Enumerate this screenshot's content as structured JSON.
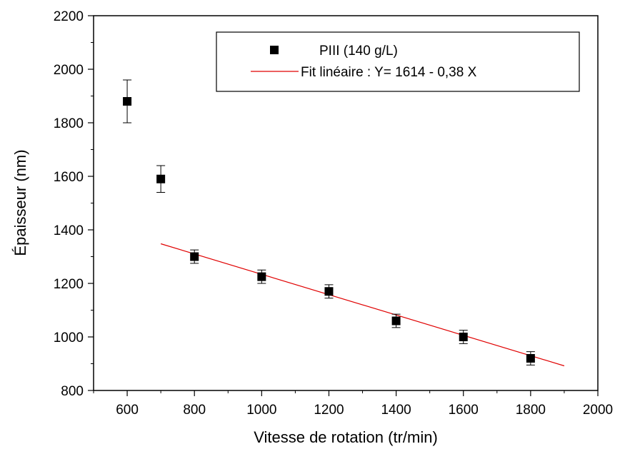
{
  "chart_data": {
    "type": "scatter",
    "xlabel": "Vitesse de rotation (tr/min)",
    "ylabel": "Épaisseur (nm)",
    "xlim": [
      500,
      2000
    ],
    "ylim": [
      800,
      2200
    ],
    "x_ticks": [
      600,
      800,
      1000,
      1200,
      1400,
      1600,
      1800,
      2000
    ],
    "y_ticks": [
      800,
      1000,
      1200,
      1400,
      1600,
      1800,
      2000,
      2200
    ],
    "grid": false,
    "legend_position": "top-right",
    "series": [
      {
        "name": "PIII (140 g/L)",
        "kind": "scatter",
        "marker": "square",
        "color": "#000000",
        "points": [
          {
            "x": 600,
            "y": 1880,
            "err": 80
          },
          {
            "x": 700,
            "y": 1590,
            "err": 50
          },
          {
            "x": 800,
            "y": 1300,
            "err": 25
          },
          {
            "x": 1000,
            "y": 1225,
            "err": 25
          },
          {
            "x": 1200,
            "y": 1170,
            "err": 25
          },
          {
            "x": 1400,
            "y": 1060,
            "err": 25
          },
          {
            "x": 1600,
            "y": 1000,
            "err": 25
          },
          {
            "x": 1800,
            "y": 920,
            "err": 25
          }
        ]
      },
      {
        "name": "Fit linéaire : Y= 1614 - 0,38 X",
        "kind": "line",
        "color": "#e00000",
        "intercept": 1614,
        "slope": -0.38,
        "x_range": [
          700,
          1900
        ]
      }
    ]
  }
}
